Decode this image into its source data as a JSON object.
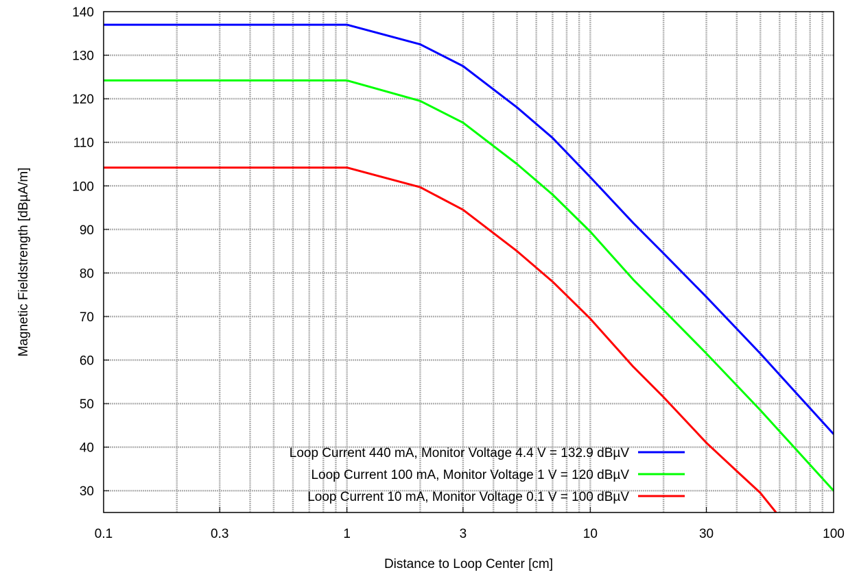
{
  "chart_data": {
    "type": "line",
    "title": "",
    "xlabel": "Distance to Loop Center [cm]",
    "ylabel": "Magnetic Fieldstrength [dBµA/m]",
    "xscale": "log",
    "xlim": [
      0.1,
      100
    ],
    "ylim": [
      25,
      140
    ],
    "x_ticks": [
      0.1,
      0.3,
      1,
      3,
      10,
      30,
      100
    ],
    "x_tick_labels": [
      "0.1",
      "0.3",
      "1",
      "3",
      "10",
      "30",
      "100"
    ],
    "y_ticks": [
      30,
      40,
      50,
      60,
      70,
      80,
      90,
      100,
      110,
      120,
      130,
      140
    ],
    "y_tick_labels": [
      "30",
      "40",
      "50",
      "60",
      "70",
      "80",
      "90",
      "100",
      "110",
      "120",
      "130",
      "140"
    ],
    "grid": true,
    "legend_position": "bottom-center",
    "colors": {
      "series1": "#0000ff",
      "series2": "#00ff00",
      "series3": "#ff0000",
      "grid": "#b4b4b4"
    },
    "series": [
      {
        "name": "Loop Current 440 mA, Monitor Voltage 4.4 V = 132.9 dBµV",
        "points": [
          [
            0.1,
            137
          ],
          [
            1,
            137
          ],
          [
            2,
            132.5
          ],
          [
            3,
            127.5
          ],
          [
            5,
            118
          ],
          [
            7,
            111
          ],
          [
            10,
            102
          ],
          [
            15,
            91.5
          ],
          [
            20,
            84.5
          ],
          [
            30,
            74.5
          ],
          [
            50,
            61.5
          ],
          [
            70,
            52.5
          ],
          [
            100,
            43
          ]
        ]
      },
      {
        "name": "Loop Current 100 mA, Monitor Voltage 1 V = 120 dBµV",
        "points": [
          [
            0.1,
            124.2
          ],
          [
            1,
            124.2
          ],
          [
            2,
            119.5
          ],
          [
            3,
            114.5
          ],
          [
            5,
            105
          ],
          [
            7,
            98
          ],
          [
            10,
            89.5
          ],
          [
            15,
            78.5
          ],
          [
            20,
            71.5
          ],
          [
            30,
            61.5
          ],
          [
            50,
            48.5
          ],
          [
            70,
            39.5
          ],
          [
            100,
            30
          ]
        ]
      },
      {
        "name": "Loop Current 10 mA, Monitor Voltage 0.1 V = 100 dBµV",
        "points": [
          [
            0.1,
            104.2
          ],
          [
            1,
            104.2
          ],
          [
            2,
            99.7
          ],
          [
            3,
            94.5
          ],
          [
            5,
            85
          ],
          [
            7,
            78
          ],
          [
            10,
            69.5
          ],
          [
            15,
            58.5
          ],
          [
            20,
            51.5
          ],
          [
            30,
            41
          ],
          [
            40,
            34.5
          ],
          [
            50,
            29.5
          ],
          [
            58,
            25
          ]
        ]
      }
    ]
  }
}
